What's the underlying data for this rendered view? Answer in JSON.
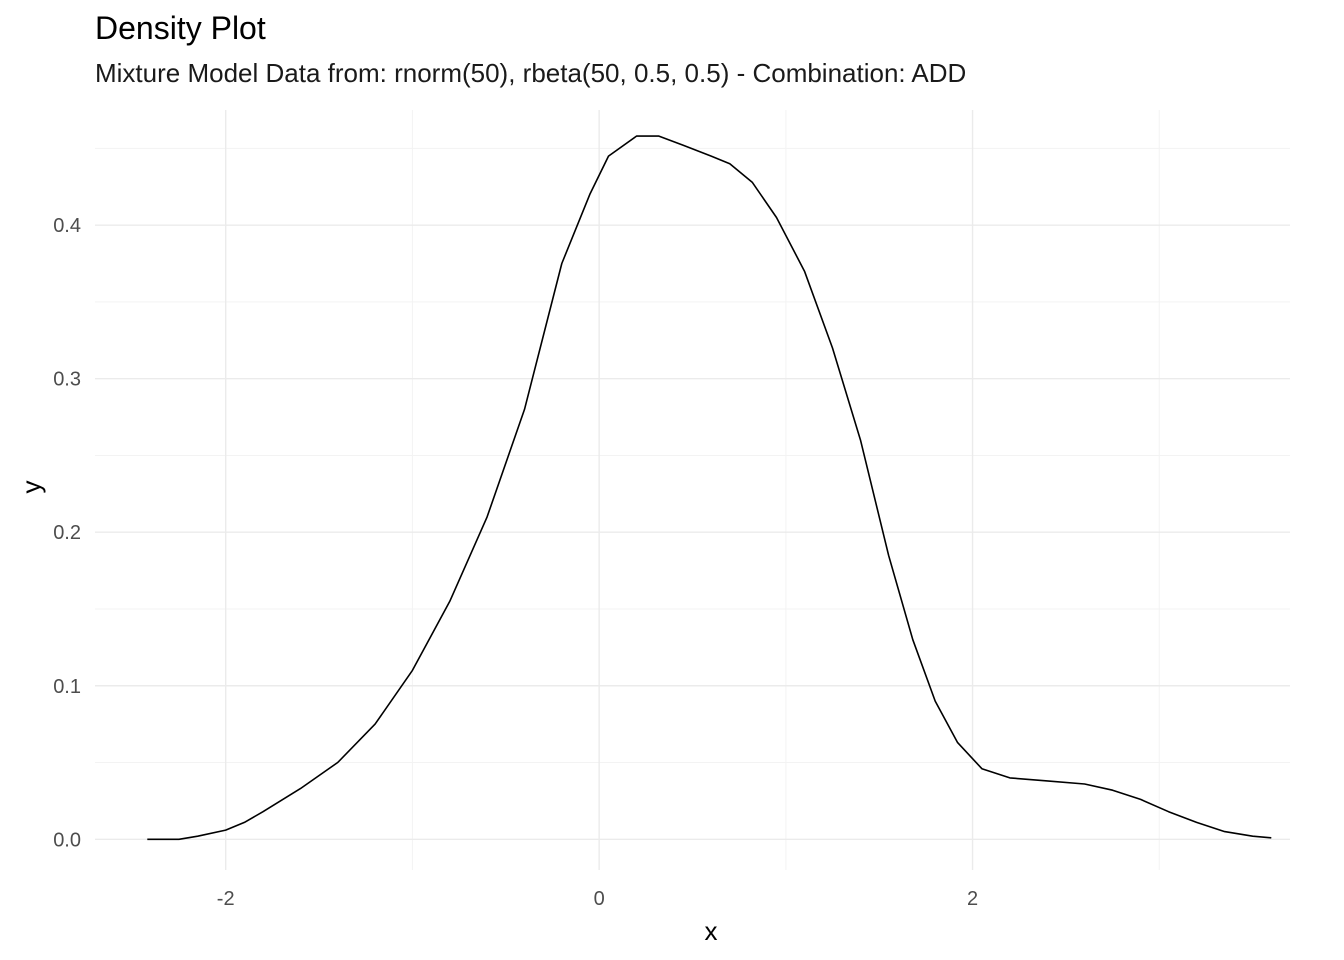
{
  "chart_data": {
    "type": "line",
    "title": "Density Plot",
    "subtitle": "Mixture Model Data from: rnorm(50), rbeta(50, 0.5, 0.5) - Combination: ADD",
    "xlabel": "x",
    "ylabel": "y",
    "xlim": [
      -2.7,
      3.7
    ],
    "ylim": [
      -0.02,
      0.475
    ],
    "x_ticks": [
      -2,
      0,
      2
    ],
    "x_tick_labels": [
      "-2",
      "0",
      "2"
    ],
    "y_ticks": [
      0.0,
      0.1,
      0.2,
      0.3,
      0.4
    ],
    "y_tick_labels": [
      "0.0",
      "0.1",
      "0.2",
      "0.3",
      "0.4"
    ],
    "grid": true,
    "colors": {
      "line": "#000000",
      "grid_major": "#ebebeb",
      "grid_minor": "#f3f3f3"
    },
    "series": [
      {
        "x": [
          -2.42,
          -2.25,
          -2.15,
          -2.0,
          -1.9,
          -1.8,
          -1.6,
          -1.4,
          -1.2,
          -1.0,
          -0.8,
          -0.6,
          -0.4,
          -0.2,
          -0.05,
          0.05,
          0.2,
          0.32,
          0.45,
          0.6,
          0.7,
          0.82,
          0.95,
          1.1,
          1.25,
          1.4,
          1.55,
          1.68,
          1.8,
          1.92,
          2.05,
          2.2,
          2.4,
          2.6,
          2.75,
          2.9,
          3.05,
          3.2,
          3.35,
          3.5,
          3.6
        ],
        "y": [
          0.0,
          0.0,
          0.002,
          0.006,
          0.011,
          0.018,
          0.033,
          0.05,
          0.075,
          0.11,
          0.155,
          0.21,
          0.28,
          0.375,
          0.42,
          0.445,
          0.458,
          0.458,
          0.452,
          0.445,
          0.44,
          0.428,
          0.405,
          0.37,
          0.32,
          0.26,
          0.185,
          0.13,
          0.09,
          0.063,
          0.046,
          0.04,
          0.038,
          0.036,
          0.032,
          0.026,
          0.018,
          0.011,
          0.005,
          0.002,
          0.001
        ]
      }
    ]
  }
}
